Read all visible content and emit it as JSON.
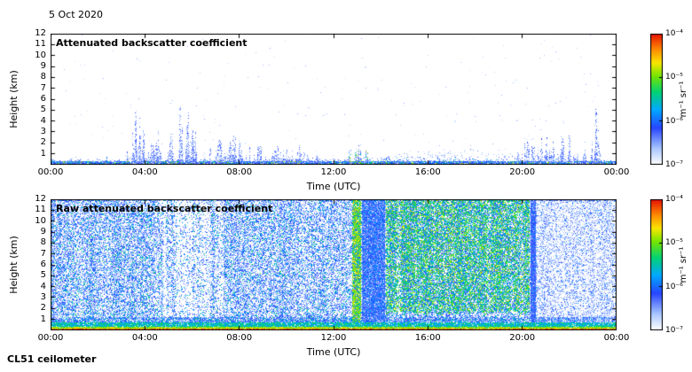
{
  "page": {
    "date_label": "5 Oct 2020",
    "footer_label": "CL51 ceilometer",
    "background": "#ffffff",
    "axis_color": "#000000"
  },
  "chart_data": [
    {
      "type": "heatmap",
      "instrument": "CL51 ceilometer",
      "title": "Attenuated backscatter coefficient",
      "xlabel": "Time (UTC)",
      "ylabel": "Height (km)",
      "x_ticks": [
        "00:00",
        "04:00",
        "08:00",
        "12:00",
        "16:00",
        "20:00",
        "00:00"
      ],
      "x_range_hours": [
        0,
        24
      ],
      "y_ticks": [
        "12",
        "11",
        "10",
        "9",
        "8",
        "7",
        "6",
        "5",
        "4",
        "3",
        "2",
        "1"
      ],
      "y_range_km": [
        0,
        12
      ],
      "grid": false,
      "colorbar": {
        "label": "m⁻¹ sr⁻¹",
        "scale": "log",
        "tick_labels": [
          "10⁻⁴",
          "10⁻⁵",
          "10⁻⁶",
          "10⁻⁷"
        ],
        "range": [
          1e-07,
          0.0001
        ],
        "colormap_stops": [
          [
            0.0,
            "#ffffff"
          ],
          [
            0.12,
            "#aac8ff"
          ],
          [
            0.28,
            "#2846ff"
          ],
          [
            0.42,
            "#00aaff"
          ],
          [
            0.55,
            "#00d278"
          ],
          [
            0.68,
            "#78e600"
          ],
          [
            0.78,
            "#fae600"
          ],
          [
            0.88,
            "#ff8c00"
          ],
          [
            1.0,
            "#e61400"
          ]
        ]
      },
      "features": [
        {
          "kind": "surface_layer",
          "time": [
            0,
            24
          ],
          "top_km": 0.8
        },
        {
          "kind": "surface_hot_line",
          "time": [
            0,
            1.8
          ]
        },
        {
          "kind": "surface_hot_line",
          "time": [
            12.3,
            13.6
          ]
        },
        {
          "kind": "plumes",
          "time": [
            3.2,
            4.7
          ],
          "max_km": 5.6
        },
        {
          "kind": "plumes",
          "time": [
            4.9,
            6.3
          ],
          "max_km": 5.4
        },
        {
          "kind": "plumes",
          "time": [
            6.4,
            9.2
          ],
          "max_km": 2.7
        },
        {
          "kind": "plumes",
          "time": [
            9.2,
            11.5
          ],
          "max_km": 2.2
        },
        {
          "kind": "mixed_spots",
          "time": [
            12.5,
            13.7
          ],
          "max_km": 1.9
        },
        {
          "kind": "haze",
          "time": [
            13.5,
            20.6
          ],
          "top_km": 1.3
        },
        {
          "kind": "plumes",
          "time": [
            19.4,
            22.8
          ],
          "max_km": 3.0
        },
        {
          "kind": "plumes",
          "time": [
            22.9,
            23.3
          ],
          "max_km": 5.2
        }
      ]
    },
    {
      "type": "heatmap",
      "instrument": "CL51 ceilometer",
      "title": "Raw attenuated backscatter coefficient",
      "xlabel": "Time (UTC)",
      "ylabel": "Height (km)",
      "x_ticks": [
        "00:00",
        "04:00",
        "08:00",
        "12:00",
        "16:00",
        "20:00",
        "00:00"
      ],
      "x_range_hours": [
        0,
        24
      ],
      "y_ticks": [
        "12",
        "11",
        "10",
        "9",
        "8",
        "7",
        "6",
        "5",
        "4",
        "3",
        "2",
        "1"
      ],
      "y_range_km": [
        0,
        12
      ],
      "grid": false,
      "colorbar": {
        "label": "m⁻¹ sr⁻¹",
        "scale": "log",
        "tick_labels": [
          "10⁻⁴",
          "10⁻⁵",
          "10⁻⁶",
          "10⁻⁷"
        ],
        "range": [
          1e-07,
          0.0001
        ],
        "colormap_stops": [
          [
            0.0,
            "#ffffff"
          ],
          [
            0.12,
            "#aac8ff"
          ],
          [
            0.28,
            "#2846ff"
          ],
          [
            0.42,
            "#00aaff"
          ],
          [
            0.55,
            "#00d278"
          ],
          [
            0.68,
            "#78e600"
          ],
          [
            0.78,
            "#fae600"
          ],
          [
            0.88,
            "#ff8c00"
          ],
          [
            1.0,
            "#e61400"
          ]
        ]
      },
      "features": [
        {
          "kind": "background_speckle",
          "time": [
            0,
            12.75
          ],
          "density": "high",
          "colors": "blue"
        },
        {
          "kind": "clear_streaks",
          "time": [
            4.6,
            7.3
          ]
        },
        {
          "kind": "bright_column",
          "time": [
            12.78,
            13.15
          ],
          "colors": "green-yellow"
        },
        {
          "kind": "dense_blue_band",
          "time": [
            13.2,
            14.15
          ]
        },
        {
          "kind": "green_noise_region",
          "time": [
            14.2,
            20.3
          ],
          "base_km": 1.5,
          "colors": "green-cyan"
        },
        {
          "kind": "dark_blue_line",
          "time": [
            20.35,
            20.55
          ]
        },
        {
          "kind": "sparse_speckle",
          "time": [
            20.6,
            24
          ],
          "density": "low",
          "colors": "pale-blue"
        },
        {
          "kind": "surface_bright_band",
          "time": [
            0,
            24
          ],
          "top_km": 1.2,
          "colors": "red-yellow-cyan"
        }
      ]
    }
  ]
}
